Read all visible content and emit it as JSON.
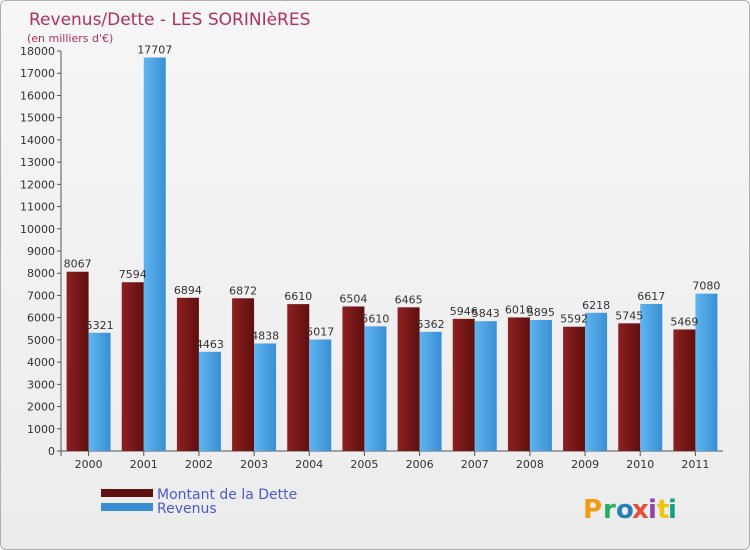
{
  "chart_data": {
    "type": "bar",
    "title": "Revenus/Dette - LES SORINIèRES",
    "subtitle": "(en milliers d'€)",
    "categories": [
      "2000",
      "2001",
      "2002",
      "2003",
      "2004",
      "2005",
      "2006",
      "2007",
      "2008",
      "2009",
      "2010",
      "2011"
    ],
    "series": [
      {
        "name": "Montant de la Dette",
        "color": "#7a1818",
        "values": [
          8067,
          7594,
          6894,
          6872,
          6610,
          6504,
          6465,
          5946,
          6010,
          5592,
          5745,
          5469
        ]
      },
      {
        "name": "Revenus",
        "color": "#4aa3e6",
        "values": [
          5321,
          17707,
          4463,
          4838,
          5017,
          5610,
          5362,
          5843,
          5895,
          6218,
          6617,
          7080
        ]
      }
    ],
    "ylim": [
      0,
      18000
    ],
    "yticks": [
      0,
      1000,
      2000,
      3000,
      4000,
      5000,
      6000,
      7000,
      8000,
      9000,
      10000,
      11000,
      12000,
      13000,
      14000,
      15000,
      16000,
      17000,
      18000
    ],
    "grid": false,
    "legend": "bottom-left"
  },
  "logo": {
    "text": "Proxiti",
    "letters": [
      "P",
      "r",
      "o",
      "x",
      "i",
      "t",
      "i"
    ],
    "colors": [
      "#f39c12",
      "#27ae60",
      "#2980b9",
      "#e74c3c",
      "#8e44ad",
      "#f1c40f",
      "#16a085"
    ]
  }
}
